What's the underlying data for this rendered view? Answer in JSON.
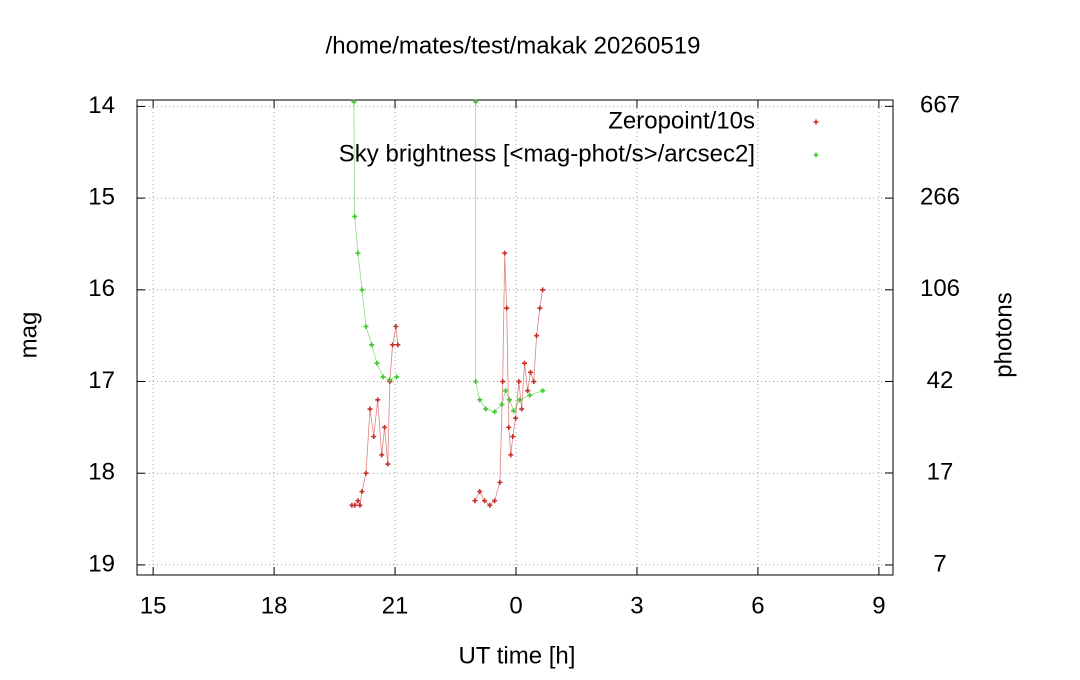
{
  "chart_data": {
    "type": "scatter",
    "title": "/home/mates/test/makak 20260519",
    "x_label": "UT time [h]",
    "y_label": "mag",
    "y2_label": "photons",
    "xlim": [
      14.6,
      33.35
    ],
    "xticks": [
      15,
      18,
      21,
      {
        "value": 24,
        "label": "0"
      },
      {
        "value": 27,
        "label": "3"
      },
      {
        "value": 30,
        "label": "6"
      },
      {
        "value": 33,
        "label": "9"
      }
    ],
    "ylim": [
      19.11,
      13.93
    ],
    "yticks": [
      14,
      15,
      16,
      17,
      18,
      19
    ],
    "y2lim": [
      6.03,
      711
    ],
    "y2_log": true,
    "y2ticks": [
      667,
      {
        "value": 265.5,
        "label": "266"
      },
      {
        "value": 105.7,
        "label": "106"
      },
      {
        "value": 42.1,
        "label": "42"
      },
      {
        "value": 16.8,
        "label": "17"
      },
      {
        "value": 6.67,
        "label": "7"
      }
    ],
    "grid": true,
    "legend": "top-right",
    "series": [
      {
        "name": "Zeropoint/10s",
        "color": "#c8302a",
        "x": [
          19.93,
          20.0,
          20.08,
          20.13,
          20.18,
          20.28,
          20.38,
          20.47,
          20.57,
          20.67,
          20.74,
          20.82,
          20.87,
          20.94,
          21.02,
          21.07,
          null,
          22.98,
          23.1,
          23.22,
          23.35,
          23.47,
          23.6,
          23.67,
          23.72,
          23.77,
          23.82,
          23.87,
          23.92,
          23.99,
          24.07,
          24.14,
          24.21,
          24.29,
          24.36,
          24.44,
          24.51,
          24.59,
          24.66
        ],
        "values": [
          18.35,
          18.35,
          18.3,
          18.35,
          18.2,
          18.0,
          17.3,
          17.6,
          17.2,
          17.8,
          17.5,
          17.9,
          17.0,
          16.6,
          16.4,
          16.6,
          null,
          18.3,
          18.2,
          18.3,
          18.35,
          18.3,
          18.1,
          17.0,
          15.6,
          16.2,
          17.5,
          17.8,
          17.6,
          17.4,
          17.0,
          17.3,
          16.8,
          17.1,
          16.9,
          17.0,
          16.5,
          16.2,
          16.0
        ]
      },
      {
        "name": "Sky brightness [<mag-phot/s>/arcsec2]",
        "color": "#3ec82e",
        "x": [
          19.98,
          20.0,
          20.08,
          20.18,
          20.28,
          20.42,
          20.55,
          20.7,
          20.87,
          21.04,
          null,
          23.0,
          23.0,
          23.1,
          23.25,
          23.47,
          23.65,
          23.74,
          23.84,
          23.94,
          24.09,
          24.34,
          24.66
        ],
        "values": [
          13.95,
          15.2,
          15.6,
          16.0,
          16.4,
          16.6,
          16.8,
          16.95,
          16.98,
          16.95,
          null,
          13.95,
          17.0,
          17.2,
          17.3,
          17.33,
          17.25,
          17.1,
          17.2,
          17.32,
          17.2,
          17.15,
          17.1
        ]
      }
    ]
  }
}
